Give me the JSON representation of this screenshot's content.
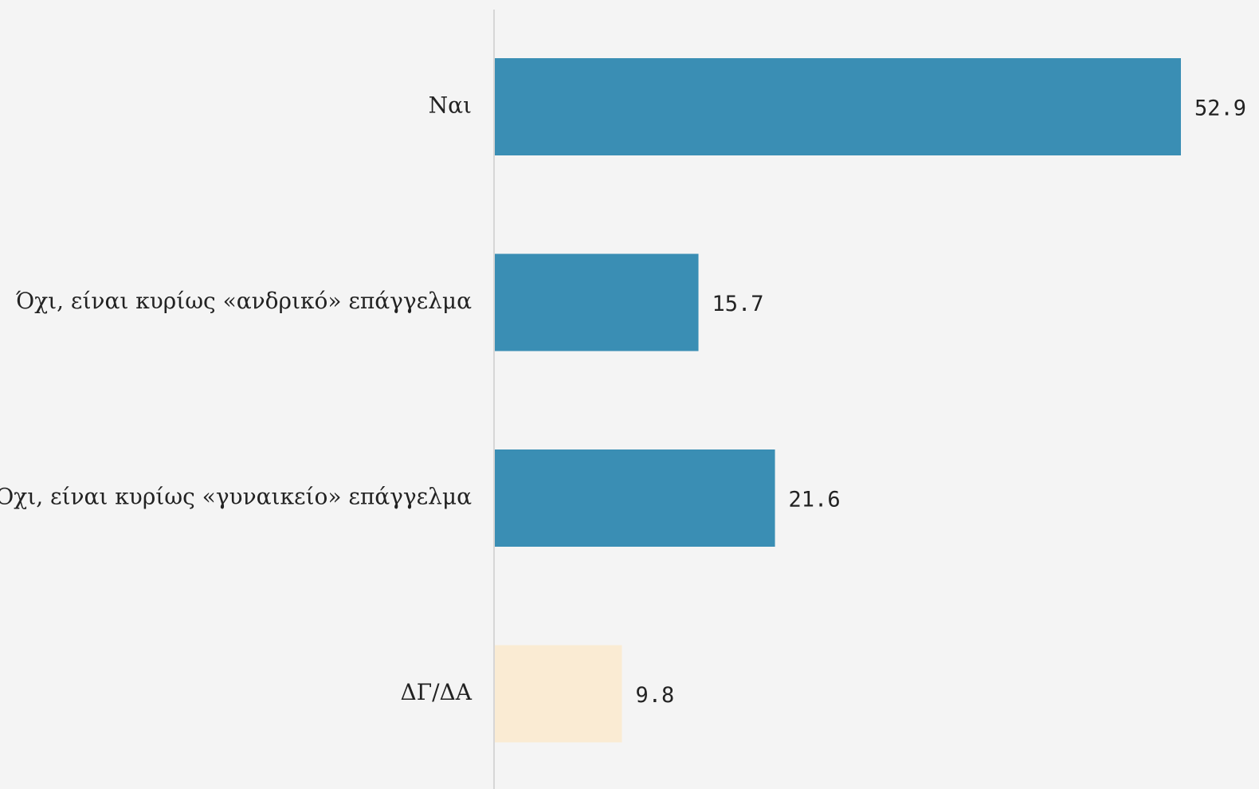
{
  "chart_data": {
    "type": "bar",
    "orientation": "horizontal",
    "categories": [
      "Ναι",
      "Όχι, είναι κυρίως «ανδρικό» επάγγελμα",
      "Όχι, είναι κυρίως «γυναικείο» επάγγελμα",
      "ΔΓ/ΔΑ"
    ],
    "values": [
      52.9,
      15.7,
      21.6,
      9.8
    ],
    "value_labels": [
      "52.9",
      "15.7",
      "21.6",
      "9.8"
    ],
    "bar_colors": [
      "#3a8eb4",
      "#3a8eb4",
      "#3a8eb4",
      "#faebd3"
    ],
    "xlim": [
      0,
      52.9
    ],
    "title": "",
    "xlabel": "",
    "ylabel": "",
    "grid": false,
    "legend": "none"
  },
  "colors": {
    "background": "#f4f4f4",
    "axis": "#d6d6d6"
  }
}
